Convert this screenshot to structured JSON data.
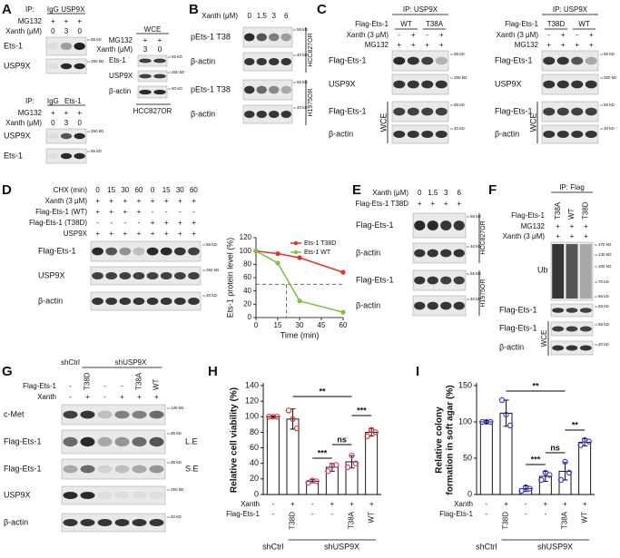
{
  "panels": {
    "A": {
      "letter": "A",
      "ip1": {
        "ip": "IP:",
        "lanes": [
          "IgG",
          "USP9X"
        ],
        "rows": [
          {
            "label": "MG132",
            "signs": [
              "+",
              "+",
              "+"
            ]
          },
          {
            "label": "Xanth (μM)",
            "signs": [
              "0",
              "3",
              "0"
            ]
          }
        ],
        "blots": [
          "Ets-1",
          "USP9X"
        ],
        "markers": [
          "55 kD",
          "250 kD"
        ]
      },
      "wce": {
        "title": "WCE",
        "rows": [
          {
            "label": "MG132",
            "signs": [
              "+",
              "+"
            ]
          },
          {
            "label": "Xanth (μM)",
            "signs": [
              "3",
              "0"
            ]
          }
        ],
        "blots": [
          "Ets-1",
          "USP9X",
          "β-actin"
        ],
        "markers": [
          "55 kD",
          "250 kD",
          "40 kD"
        ],
        "cell_line": "HCC827OR"
      },
      "ip2": {
        "ip": "IP:",
        "lanes": [
          "IgG",
          "Ets-1"
        ],
        "rows": [
          {
            "label": "MG132",
            "signs": [
              "+",
              "+",
              "+"
            ]
          },
          {
            "label": "Xanth (μM)",
            "signs": [
              "0",
              "3",
              "0"
            ]
          }
        ],
        "blots": [
          "USP9X",
          "Ets-1"
        ],
        "markers": [
          "250 kD",
          "55 kD"
        ]
      }
    },
    "B": {
      "letter": "B",
      "rows": [
        {
          "label": "Xanth (μM)",
          "signs": [
            "0",
            "1.5",
            "3",
            "6"
          ]
        }
      ],
      "blots": [
        "pEts-1 T38",
        "β-actin",
        "pEts-1 T38",
        "β-actin"
      ],
      "markers": [
        "55 kD",
        "40 kD",
        "55 kD",
        "40 kD"
      ],
      "cell_lines": [
        "HCC827OR",
        "H1975OR"
      ]
    },
    "C": {
      "letter": "C",
      "left": {
        "ip": "IP: USP9X",
        "rows": [
          {
            "label": "Flag-Ets-1",
            "signs": [
              "WT",
              "T38A"
            ]
          },
          {
            "label": "Xanth (3 μM)",
            "signs": [
              "-",
              "+",
              "-",
              "+"
            ]
          },
          {
            "label": "MG132",
            "signs": [
              "+",
              "+",
              "+",
              "+"
            ]
          }
        ],
        "blots": [
          "Flag-Ets-1",
          "USP9X",
          "Flag-Ets-1",
          "β-actin"
        ],
        "wce": "WCE",
        "markers": [
          "55 kD",
          "250 kD",
          "55 kD",
          "40 kD"
        ]
      },
      "right": {
        "ip": "IP: USP9X",
        "rows": [
          {
            "label": "Flag-Ets-1",
            "signs": [
              "T38D",
              "WT"
            ]
          },
          {
            "label": "Xanth (3 μM)",
            "signs": [
              "-",
              "+",
              "-",
              "+"
            ]
          },
          {
            "label": "MG132",
            "signs": [
              "+",
              "+",
              "+",
              "+"
            ]
          }
        ],
        "blots": [
          "Flag-Ets-1",
          "USP9X",
          "Flag-Ets-1",
          "β-actin"
        ],
        "wce": "WCE",
        "markers": [
          "55 kD",
          "250 kD",
          "55 kD",
          "40 kD"
        ]
      }
    },
    "D": {
      "letter": "D",
      "rows": [
        {
          "label": "CHX (min)",
          "signs": [
            "0",
            "15",
            "30",
            "60",
            "0",
            "15",
            "30",
            "60"
          ]
        },
        {
          "label": "Xanth (3 μM)",
          "signs": [
            "+",
            "+",
            "+",
            "+",
            "+",
            "+",
            "+",
            "+"
          ]
        },
        {
          "label": "Flag-Ets-1 (WT)",
          "signs": [
            "+",
            "+",
            "+",
            "+",
            "-",
            "-",
            "-",
            "-"
          ]
        },
        {
          "label": "Flag-Ets-1 (T38D)",
          "signs": [
            "-",
            "-",
            "-",
            "-",
            "+",
            "+",
            "+",
            "+"
          ]
        },
        {
          "label": "USP9X",
          "signs": [
            "+",
            "+",
            "+",
            "+",
            "+",
            "+",
            "+",
            "+"
          ]
        }
      ],
      "blots": [
        "Flag-Ets-1",
        "USP9X",
        "β-actin"
      ],
      "markers": [
        "55 kD",
        "250 kD",
        "40 kD"
      ]
    },
    "E": {
      "letter": "E",
      "rows": [
        {
          "label": "Xanth (μM)",
          "signs": [
            "0",
            "1.5",
            "3",
            "6"
          ]
        },
        {
          "label": "Flag-Ets-1 T38D",
          "signs": [
            "+",
            "+",
            "+",
            "+"
          ]
        }
      ],
      "blots": [
        "Flag-Ets-1",
        "β-actin",
        "Flag-Ets-1",
        "β-actin"
      ],
      "markers": [
        "55 kD",
        "40 kD",
        "55 kD",
        "40 kD"
      ],
      "cell_lines": [
        "HCC827OR",
        "H1975OR"
      ]
    },
    "F": {
      "letter": "F",
      "ip": "IP: Flag",
      "rows": [
        {
          "label": "Flag-Ets-1",
          "signs": [
            "T38A",
            "WT",
            "T38D"
          ]
        },
        {
          "label": "MG132",
          "signs": [
            "+",
            "+",
            "+"
          ]
        },
        {
          "label": "Xanth (3 μM)",
          "signs": [
            "+",
            "+",
            "+"
          ]
        }
      ],
      "blots": [
        "Ub",
        "Flag-Ets-1",
        "Flag-Ets-1",
        "β-actin"
      ],
      "wce": "WCE",
      "markers": [
        "170 kD",
        "130 kD",
        "100 kD",
        "70 kD",
        "55 kD",
        "55 kD",
        "55 kD",
        "40 kD"
      ]
    },
    "G": {
      "letter": "G",
      "groups": [
        "shCtrl",
        "shUSP9X"
      ],
      "rows": [
        {
          "label": "Flag-Ets-1",
          "signs": [
            "-",
            "T38D",
            "-",
            "-",
            "T38A",
            "WT"
          ]
        },
        {
          "label": "Xanth",
          "signs": [
            "-",
            "+",
            "-",
            "+",
            "+",
            "+"
          ]
        }
      ],
      "blots": [
        "c-Met",
        "Flag-Ets-1",
        "Flag-Ets-1",
        "USP9X",
        "β-actin"
      ],
      "exposures": [
        "L.E",
        "S.E"
      ],
      "markers": [
        "130 kD",
        "55 kD",
        "55 kD",
        "250 kD",
        "40 kD"
      ]
    },
    "H": {
      "letter": "H"
    },
    "I": {
      "letter": "I"
    }
  },
  "chart_data": [
    {
      "type": "line",
      "ylabel": "Ets-1 protein level (%)",
      "xlabel": "Time (min)",
      "x": [
        0,
        15,
        30,
        60
      ],
      "series": [
        {
          "name": "Ets-1 T38D",
          "color": "#e8312b",
          "values": [
            100,
            96,
            90,
            68
          ]
        },
        {
          "name": "Ets-1 WT",
          "color": "#7dc242",
          "values": [
            100,
            82,
            25,
            8
          ]
        }
      ],
      "xlim": [
        0,
        60
      ],
      "xticks": [
        0,
        15,
        30,
        45,
        60
      ],
      "ylim": [
        0,
        120
      ],
      "yticks": [
        0,
        20,
        40,
        60,
        80,
        100,
        120
      ],
      "hline": 50,
      "vline": 21,
      "legend": "upper right"
    },
    {
      "type": "bar",
      "ylabel": "Relative cell viability (%)",
      "values": [
        100,
        97,
        17,
        35,
        42,
        80
      ],
      "errors": [
        1,
        13,
        2,
        5,
        8,
        5
      ],
      "points": [
        [
          100,
          100,
          100
        ],
        [
          108,
          97,
          85
        ],
        [
          15,
          18,
          17
        ],
        [
          30,
          37,
          38
        ],
        [
          35,
          50,
          40
        ],
        [
          75,
          83,
          80
        ]
      ],
      "point_colors": [
        "#e8312b",
        "#e8312b",
        "#d63c8f",
        "#d63c8f",
        "#d63c8f",
        "#e8312b"
      ],
      "ylim": [
        0,
        140
      ],
      "yticks": [
        0,
        20,
        40,
        60,
        80,
        100,
        120,
        140
      ],
      "conditions": [
        {
          "label": "Xanth",
          "signs": [
            "-",
            "+",
            "-",
            "+",
            "+",
            "+"
          ]
        },
        {
          "label": "Flag-Ets-1",
          "signs": [
            "-",
            "T38D",
            "-",
            "-",
            "T38A",
            "WT"
          ]
        }
      ],
      "groups": [
        "shCtrl",
        "shUSP9X"
      ],
      "significance": [
        "**",
        "***",
        "ns",
        "***"
      ]
    },
    {
      "type": "bar",
      "ylabel": [
        "Relative colony",
        "formation in soft agar (%)"
      ],
      "values": [
        100,
        112,
        8,
        25,
        32,
        72
      ],
      "errors": [
        2,
        18,
        4,
        7,
        12,
        5
      ],
      "points": [
        [
          100,
          100,
          100
        ],
        [
          130,
          110,
          95
        ],
        [
          5,
          10,
          8
        ],
        [
          20,
          30,
          27
        ],
        [
          20,
          45,
          30
        ],
        [
          68,
          75,
          73
        ]
      ],
      "point_colors": [
        "#3d3dd8",
        "#3d3dd8",
        "#3d3dd8",
        "#3d3dd8",
        "#3d3dd8",
        "#3d3dd8"
      ],
      "ylim": [
        0,
        150
      ],
      "yticks": [
        0,
        50,
        100,
        150
      ],
      "conditions": [
        {
          "label": "Xanth",
          "signs": [
            "-",
            "+",
            "-",
            "+",
            "+",
            "+"
          ]
        },
        {
          "label": "Flag-Ets-1",
          "signs": [
            "-",
            "T38D",
            "-",
            "-",
            "T38A",
            "WT"
          ]
        }
      ],
      "groups": [
        "shCtrl",
        "shUSP9X"
      ],
      "significance": [
        "**",
        "***",
        "ns",
        "**"
      ]
    }
  ]
}
